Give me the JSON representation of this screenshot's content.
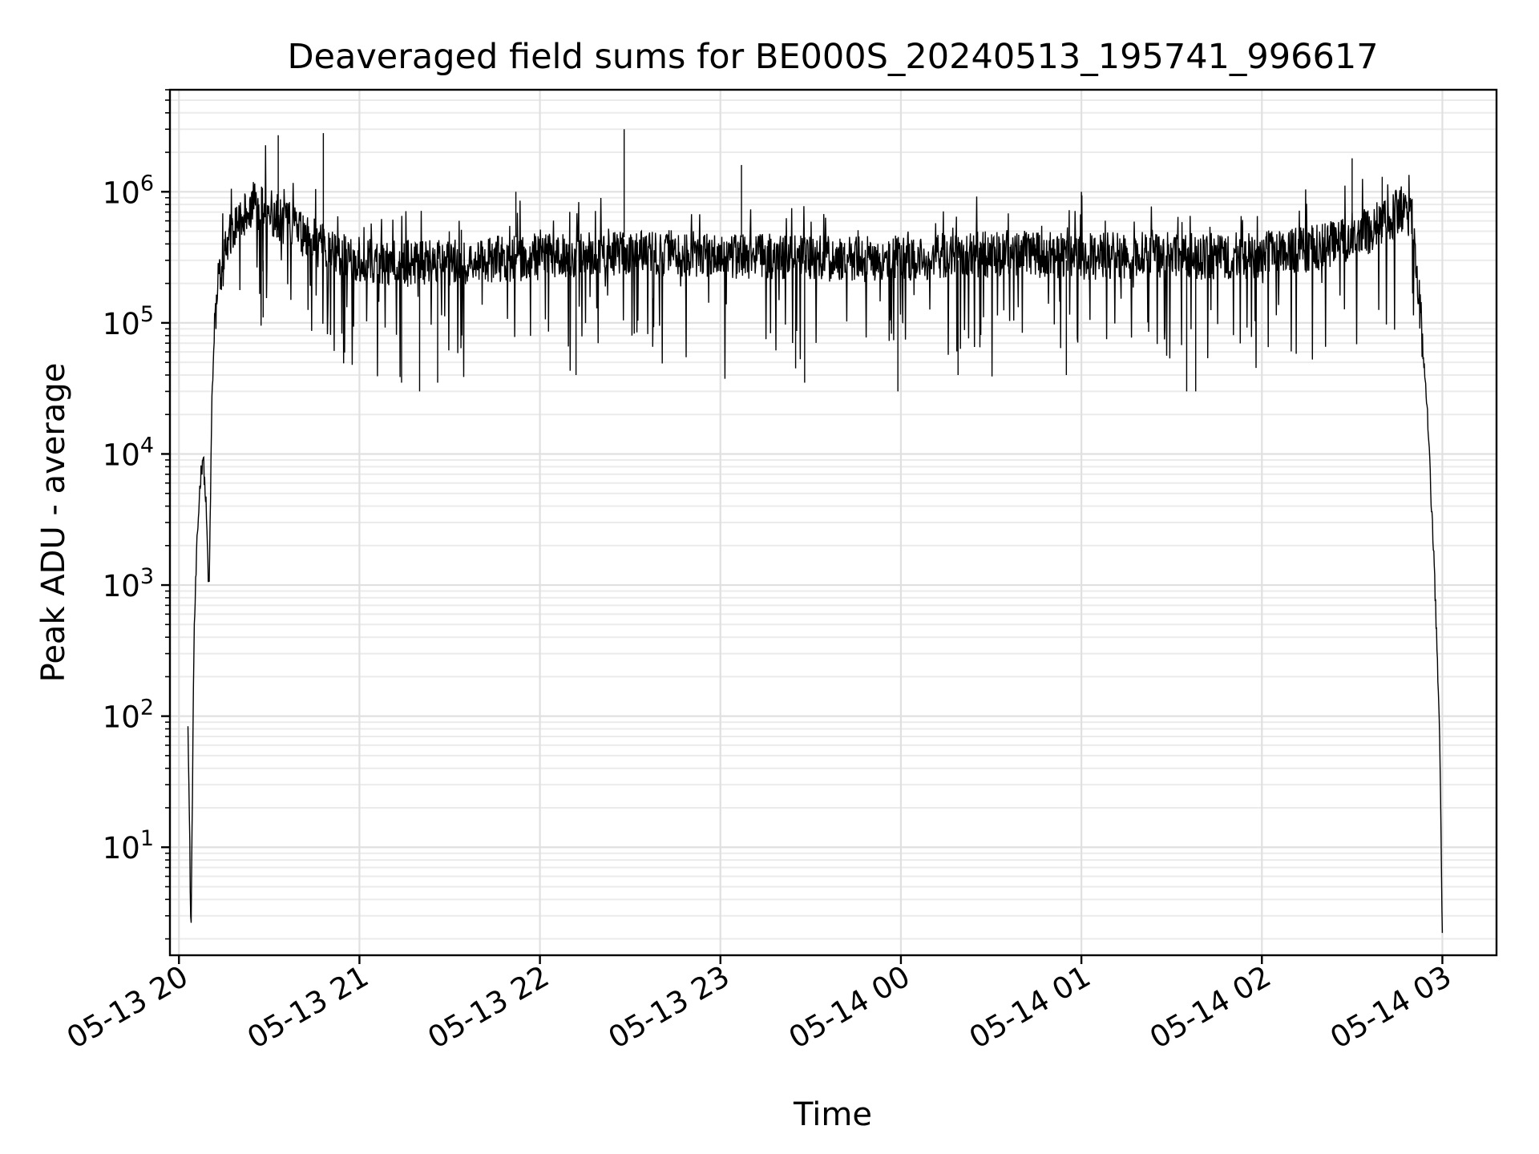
{
  "chart_data": {
    "type": "line",
    "title": "Deaveraged field sums for BE000S_20240513_195741_996617",
    "xlabel": "Time",
    "ylabel": "Peak ADU - average",
    "y_scale": "log",
    "ylim": [
      1.5,
      6000000
    ],
    "xlim": [
      "2024-05-13 19:57",
      "2024-05-14 03:18"
    ],
    "grid": true,
    "x_ticks": [
      {
        "t": "2024-05-13 20:00",
        "label": "05-13 20"
      },
      {
        "t": "2024-05-13 21:00",
        "label": "05-13 21"
      },
      {
        "t": "2024-05-13 22:00",
        "label": "05-13 22"
      },
      {
        "t": "2024-05-13 23:00",
        "label": "05-13 23"
      },
      {
        "t": "2024-05-14 00:00",
        "label": "05-14 00"
      },
      {
        "t": "2024-05-14 01:00",
        "label": "05-14 01"
      },
      {
        "t": "2024-05-14 02:00",
        "label": "05-14 02"
      },
      {
        "t": "2024-05-14 03:00",
        "label": "05-14 03"
      }
    ],
    "y_ticks": [
      {
        "value": 10,
        "base": "10",
        "exp": "1"
      },
      {
        "value": 100,
        "base": "10",
        "exp": "2"
      },
      {
        "value": 1000,
        "base": "10",
        "exp": "3"
      },
      {
        "value": 10000,
        "base": "10",
        "exp": "4"
      },
      {
        "value": 100000,
        "base": "10",
        "exp": "5"
      },
      {
        "value": 1000000,
        "base": "10",
        "exp": "6"
      }
    ],
    "series": [
      {
        "line_color": "#000000",
        "x": [
          "2024-05-13 20:03",
          "2024-05-13 20:04",
          "2024-05-13 20:05",
          "2024-05-13 20:06",
          "2024-05-13 20:07",
          "2024-05-13 20:08",
          "2024-05-13 20:09",
          "2024-05-13 20:10",
          "2024-05-13 20:11",
          "2024-05-13 20:12",
          "2024-05-13 20:13",
          "2024-05-13 20:15",
          "2024-05-13 20:17",
          "2024-05-13 20:20",
          "2024-05-13 20:25",
          "2024-05-13 20:30",
          "2024-05-13 20:40",
          "2024-05-13 20:50",
          "2024-05-13 21:00",
          "2024-05-13 21:20",
          "2024-05-13 21:40",
          "2024-05-13 22:00",
          "2024-05-13 22:20",
          "2024-05-13 22:40",
          "2024-05-13 23:00",
          "2024-05-13 23:20",
          "2024-05-13 23:40",
          "2024-05-14 00:00",
          "2024-05-14 00:20",
          "2024-05-14 00:40",
          "2024-05-14 01:00",
          "2024-05-14 01:20",
          "2024-05-14 01:40",
          "2024-05-14 02:00",
          "2024-05-14 02:20",
          "2024-05-14 02:35",
          "2024-05-14 02:45",
          "2024-05-14 02:50",
          "2024-05-14 02:53",
          "2024-05-14 02:55",
          "2024-05-14 02:57",
          "2024-05-14 02:59",
          "2024-05-14 03:00"
        ],
        "y": [
          100,
          2,
          400,
          2000,
          6000,
          10000,
          4000,
          800,
          30000,
          100000,
          200000,
          300000,
          500000,
          600000,
          800000,
          700000,
          500000,
          350000,
          300000,
          280000,
          300000,
          320000,
          350000,
          340000,
          330000,
          320000,
          300000,
          310000,
          330000,
          340000,
          320000,
          330000,
          320000,
          330000,
          380000,
          500000,
          700000,
          600000,
          100000,
          20000,
          2000,
          100,
          2
        ]
      }
    ],
    "spikes": {
      "up": [
        {
          "t": "2024-05-13 20:33",
          "y": 2700000
        },
        {
          "t": "2024-05-13 20:48",
          "y": 2800000
        },
        {
          "t": "2024-05-13 21:52",
          "y": 1000000
        },
        {
          "t": "2024-05-13 22:28",
          "y": 3000000
        },
        {
          "t": "2024-05-13 23:07",
          "y": 1600000
        },
        {
          "t": "2024-05-14 01:00",
          "y": 1000000
        },
        {
          "t": "2024-05-14 02:30",
          "y": 1800000
        },
        {
          "t": "2024-05-14 02:40",
          "y": 1300000
        }
      ],
      "down": [
        {
          "t": "2024-05-13 20:28",
          "y": 110000
        },
        {
          "t": "2024-05-13 21:14",
          "y": 35000
        },
        {
          "t": "2024-05-13 21:20",
          "y": 30000
        },
        {
          "t": "2024-05-13 21:26",
          "y": 35000
        },
        {
          "t": "2024-05-13 22:12",
          "y": 40000
        },
        {
          "t": "2024-05-13 23:25",
          "y": 45000
        },
        {
          "t": "2024-05-13 23:28",
          "y": 35000
        },
        {
          "t": "2024-05-13 23:59",
          "y": 30000
        },
        {
          "t": "2024-05-14 00:19",
          "y": 40000
        },
        {
          "t": "2024-05-14 00:55",
          "y": 40000
        },
        {
          "t": "2024-05-14 01:35",
          "y": 30000
        },
        {
          "t": "2024-05-14 01:38",
          "y": 30000
        }
      ]
    }
  }
}
